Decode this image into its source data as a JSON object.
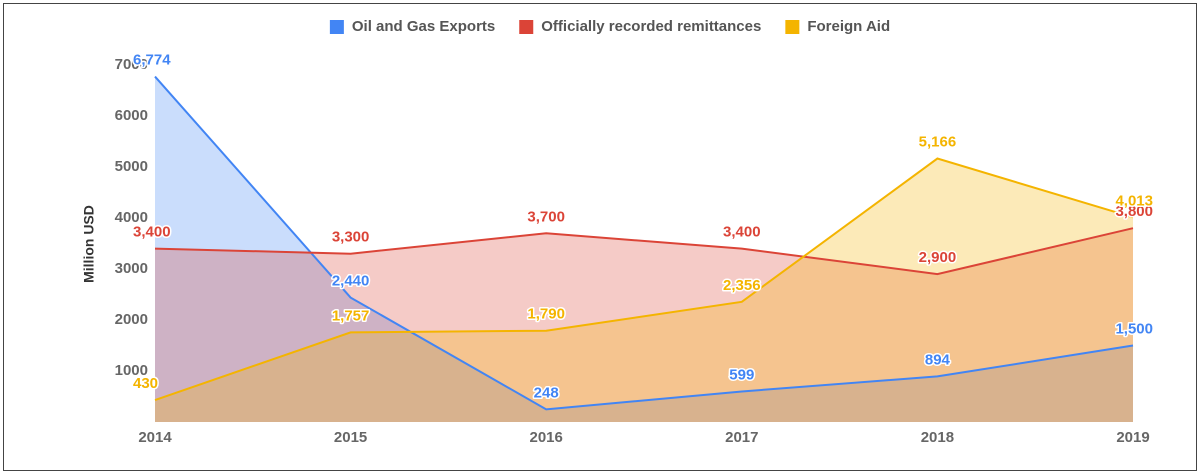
{
  "chart_data": {
    "type": "area",
    "y_label": "Million USD",
    "categories": [
      "2014",
      "2015",
      "2016",
      "2017",
      "2018",
      "2019"
    ],
    "series": [
      {
        "name": "Oil and Gas Exports",
        "color": "#4285f4",
        "values": [
          6774,
          2440,
          248,
          599,
          894,
          1500
        ],
        "value_labels": [
          "6,774",
          "2,440",
          "248",
          "599",
          "894",
          "1,500"
        ]
      },
      {
        "name": "Officially recorded remittances",
        "color": "#db4437",
        "values": [
          3400,
          3300,
          3700,
          3400,
          2900,
          3800
        ],
        "value_labels": [
          "3,400",
          "3,300",
          "3,700",
          "3,400",
          "2,900",
          "3,800"
        ]
      },
      {
        "name": "Foreign Aid",
        "color": "#f4b400",
        "values": [
          430,
          1757,
          1790,
          2356,
          5166,
          4013
        ],
        "value_labels": [
          "430",
          "1,757",
          "1,790",
          "2,356",
          "5,166",
          "4,013"
        ]
      }
    ],
    "ylim": [
      0,
      7000
    ],
    "yticks": [
      1000,
      2000,
      3000,
      4000,
      5000,
      6000,
      7000
    ],
    "grid": false,
    "legend": "top"
  }
}
